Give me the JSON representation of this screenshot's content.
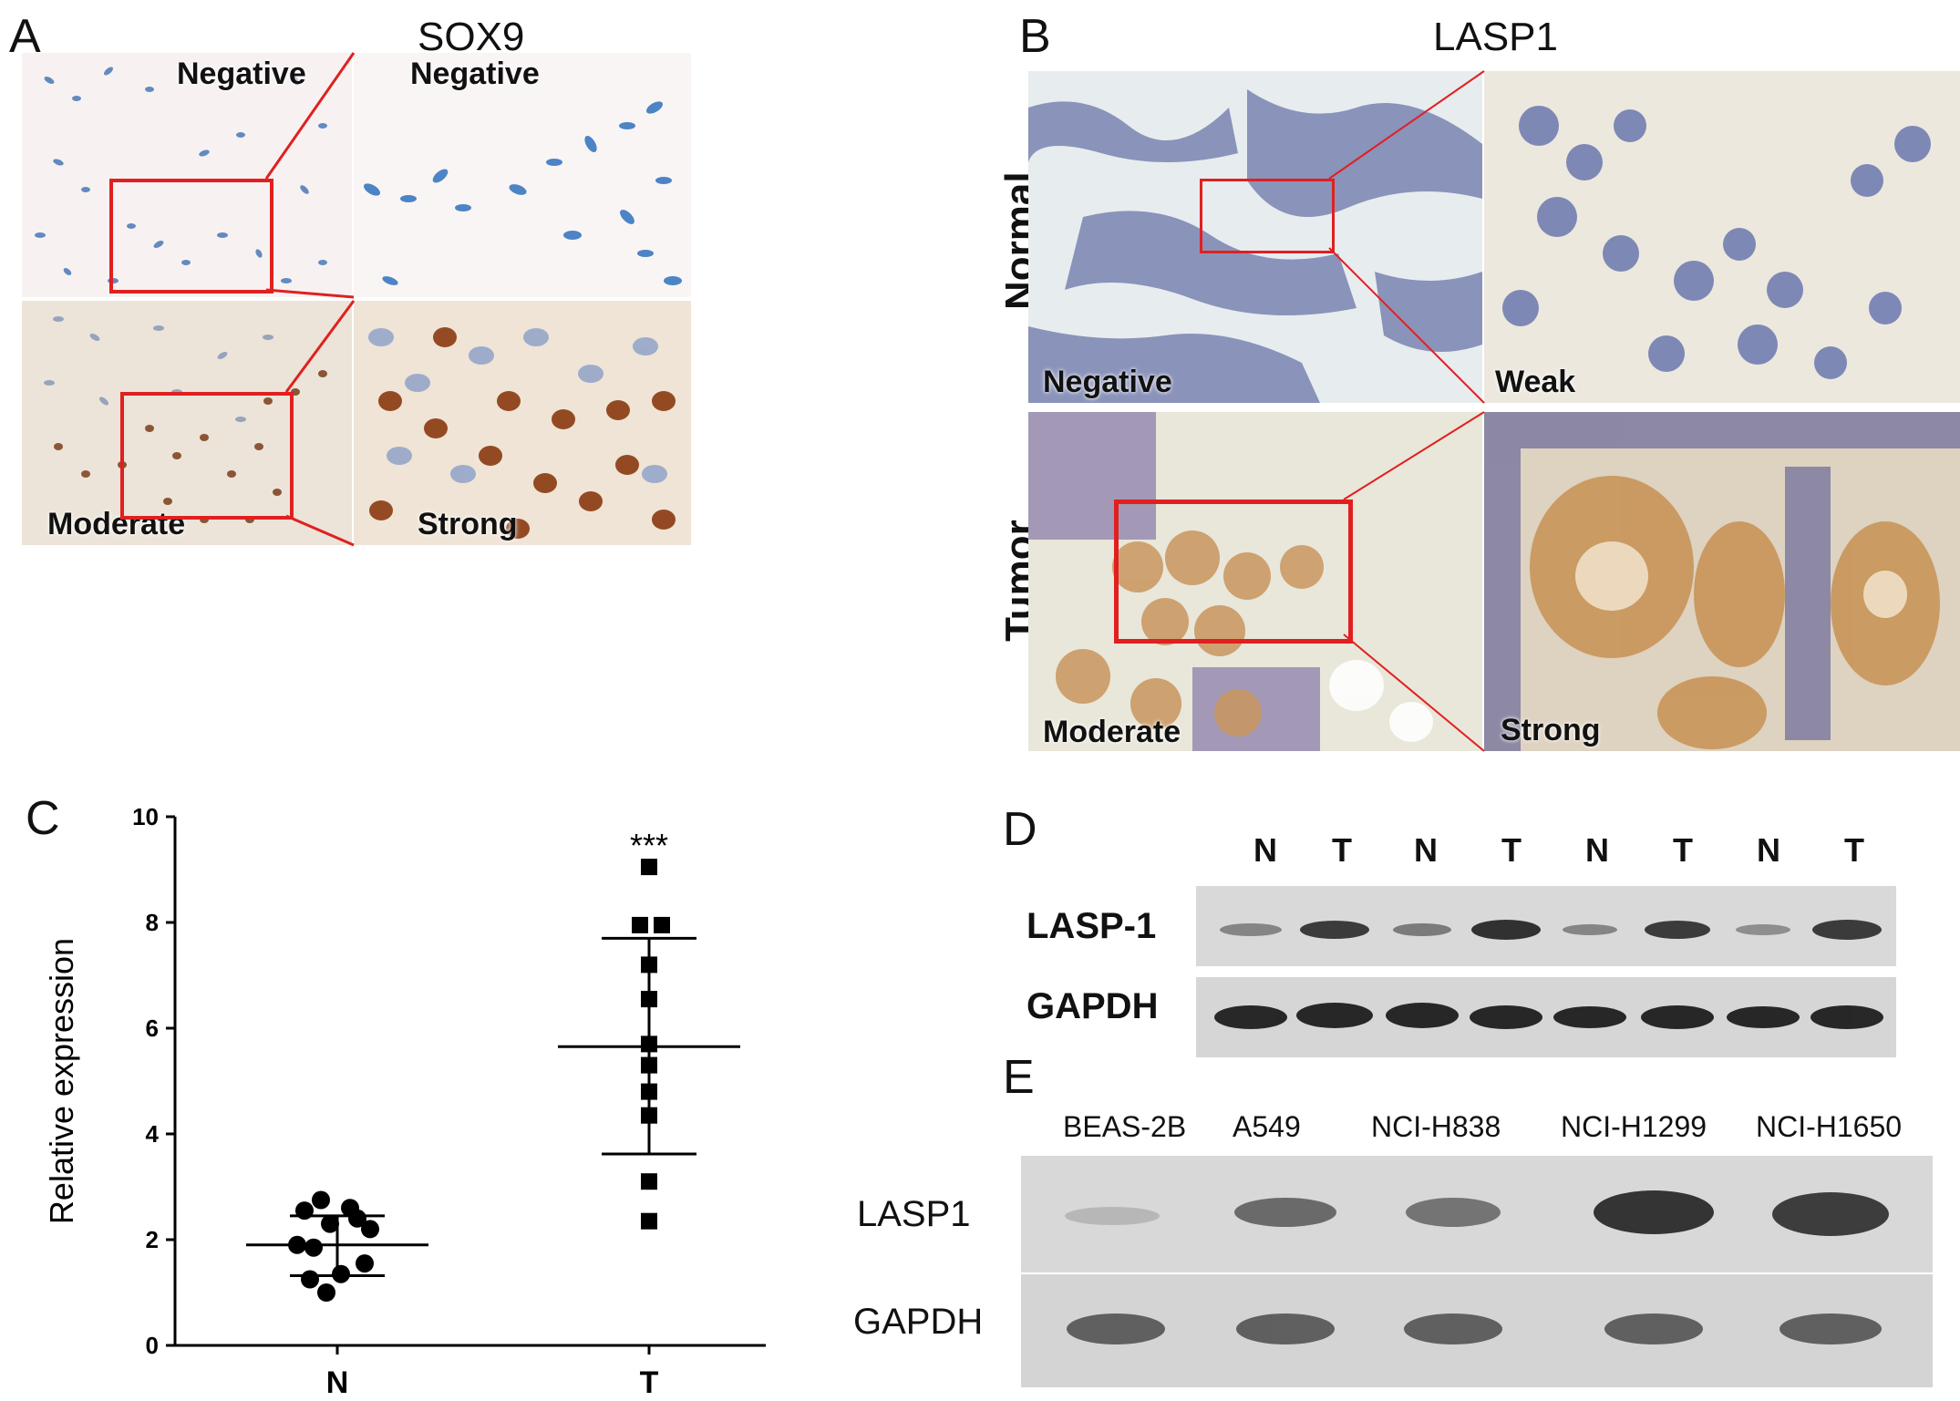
{
  "panels": {
    "a": {
      "letter": "A",
      "title": "SOX9",
      "labels": [
        "Negative",
        "Negative",
        "Moderate",
        "Strong"
      ]
    },
    "b": {
      "letter": "B",
      "title": "LASP1",
      "row_labels": [
        "Normal",
        "Tumor"
      ],
      "labels": [
        "Negative",
        "Weak",
        "Moderate",
        "Strong"
      ]
    },
    "c": {
      "letter": "C",
      "significance": "***"
    },
    "d": {
      "letter": "D",
      "lanes": [
        "N",
        "T",
        "N",
        "T",
        "N",
        "T",
        "N",
        "T"
      ],
      "rows": [
        "LASP-1",
        "GAPDH"
      ]
    },
    "e": {
      "letter": "E",
      "cell_lines": [
        "BEAS-2B",
        "A549",
        "NCI-H838",
        "NCI-H1299",
        "NCI-H1650"
      ],
      "rows": [
        "LASP1",
        "GAPDH"
      ]
    }
  },
  "chart_data": {
    "type": "scatter",
    "xlabel": "",
    "ylabel": "Relative expression",
    "categories": [
      "N",
      "T"
    ],
    "ylim": [
      0,
      10
    ],
    "yticks": [
      0,
      2,
      4,
      6,
      8,
      10
    ],
    "grid": false,
    "series": [
      {
        "category": "N",
        "marker": "circle",
        "values": [
          2.75,
          2.6,
          2.55,
          2.4,
          2.3,
          2.2,
          1.9,
          1.85,
          1.55,
          1.35,
          1.25,
          1.0
        ],
        "mean": 1.9,
        "sd_upper": 2.45,
        "sd_lower": 1.32
      },
      {
        "category": "T",
        "marker": "square",
        "values": [
          9.05,
          7.95,
          7.95,
          7.2,
          6.55,
          5.7,
          5.3,
          4.8,
          4.35,
          3.1,
          2.35
        ],
        "mean": 5.65,
        "sd_upper": 7.7,
        "sd_lower": 3.62
      }
    ]
  }
}
